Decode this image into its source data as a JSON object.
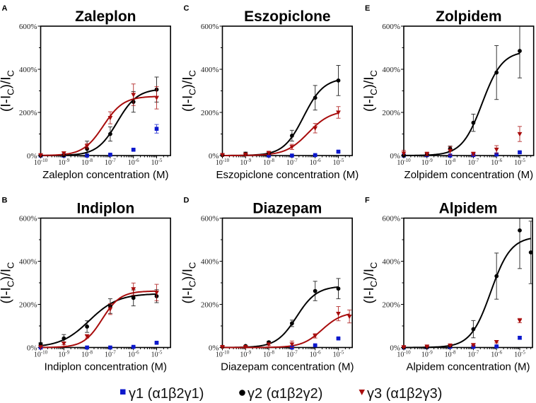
{
  "legend": [
    {
      "label": "γ1 (α1β2γ1)",
      "marker": "square",
      "color": "#0c18cc"
    },
    {
      "label": "γ2 (α1β2γ2)",
      "marker": "circle",
      "color": "#000000"
    },
    {
      "label": "γ3 (α1β2γ3)",
      "marker": "triangle_down",
      "color": "#a80c0c"
    }
  ],
  "legend_position": "bottom-center",
  "chart_data": [
    {
      "panel": "A",
      "type": "scatter",
      "title": "Zaleplon",
      "xlabel": "Zaleplon concentration (M)",
      "ylabel": "(I-IC)/IC",
      "ylabel_parts": [
        {
          "text": "(I-I"
        },
        {
          "text": "C",
          "sub": true
        },
        {
          "text": ")/I"
        },
        {
          "text": "C",
          "sub": true
        }
      ],
      "x_scale": "log10",
      "xlim_log10": [
        -10,
        -4.4
      ],
      "xticks_log10": [
        -10,
        -9,
        -8,
        -7,
        -6,
        -5
      ],
      "xtick_labels": [
        {
          "base": "10",
          "exp": "-10"
        },
        {
          "base": "10",
          "exp": "-9"
        },
        {
          "base": "10",
          "exp": "-8"
        },
        {
          "base": "10",
          "exp": "-7"
        },
        {
          "base": "10",
          "exp": "-6"
        },
        {
          "base": "10",
          "exp": "-5"
        }
      ],
      "ylim": [
        0,
        600
      ],
      "yticks": [
        0,
        200,
        400,
        600
      ],
      "yticks_minor": [
        100,
        300,
        500
      ],
      "ytick_labels": [
        "0%",
        "200%",
        "400%",
        "600%"
      ],
      "grid": false,
      "series": [
        {
          "name": "γ1 (α1β2γ1)",
          "marker": "square",
          "color": "#0c18cc",
          "x": [
            1e-10,
            1e-09,
            1e-08,
            1e-07,
            1e-06,
            1e-05
          ],
          "y": [
            0,
            0,
            0,
            4,
            27,
            124
          ],
          "err": [
            1,
            1,
            1,
            2,
            3,
            20
          ],
          "fit": null
        },
        {
          "name": "γ2 (α1β2γ2)",
          "marker": "circle",
          "color": "#000000",
          "x": [
            1e-10,
            1e-09,
            1e-08,
            1e-07,
            1e-06,
            1e-05
          ],
          "y": [
            0,
            2,
            31,
            100,
            249,
            306
          ],
          "err": [
            1,
            3,
            36,
            33,
            48,
            58
          ],
          "fit": {
            "bottom": 0,
            "top": 310,
            "log_ec50": -6.7,
            "hill": 1.0,
            "x_range_log10": [
              -10,
              -5
            ]
          }
        },
        {
          "name": "γ3 (α1β2γ3)",
          "marker": "triangle_down",
          "color": "#a80c0c",
          "x": [
            1e-10,
            1e-09,
            1e-08,
            1e-07,
            1e-06,
            1e-05
          ],
          "y": [
            2,
            10,
            44,
            175,
            282,
            268
          ],
          "err": [
            3,
            8,
            12,
            28,
            50,
            52
          ],
          "fit": {
            "bottom": 0,
            "top": 275,
            "log_ec50": -7.3,
            "hill": 1.0,
            "x_range_log10": [
              -10,
              -5
            ]
          }
        }
      ]
    },
    {
      "panel": "C",
      "type": "scatter",
      "title": "Eszopiclone",
      "xlabel": "Eszopiclone concentration (M)",
      "ylabel": "(I-IC)/IC",
      "ylabel_parts": [
        {
          "text": "(I-I"
        },
        {
          "text": "C",
          "sub": true
        },
        {
          "text": ")/I"
        },
        {
          "text": "C",
          "sub": true
        }
      ],
      "x_scale": "log10",
      "xlim_log10": [
        -10,
        -4.4
      ],
      "xticks_log10": [
        -10,
        -9,
        -8,
        -7,
        -6,
        -5
      ],
      "xtick_labels": [
        {
          "base": "10",
          "exp": "-10"
        },
        {
          "base": "10",
          "exp": "-9"
        },
        {
          "base": "10",
          "exp": "-8"
        },
        {
          "base": "10",
          "exp": "-7"
        },
        {
          "base": "10",
          "exp": "-6"
        },
        {
          "base": "10",
          "exp": "-5"
        }
      ],
      "ylim": [
        0,
        600
      ],
      "yticks": [
        0,
        200,
        400,
        600
      ],
      "yticks_minor": [
        100,
        300,
        500
      ],
      "ytick_labels": [
        "0%",
        "200%",
        "400%",
        "600%"
      ],
      "grid": false,
      "series": [
        {
          "name": "γ1 (α1β2γ1)",
          "marker": "square",
          "color": "#0c18cc",
          "x": [
            1e-08,
            1e-07,
            1e-06,
            1e-05
          ],
          "y": [
            0,
            0,
            2,
            18
          ],
          "err": [
            1,
            1,
            2,
            3
          ],
          "fit": null
        },
        {
          "name": "γ2 (α1β2γ2)",
          "marker": "circle",
          "color": "#000000",
          "x": [
            1e-10,
            1e-09,
            1e-08,
            1e-07,
            1e-06,
            1e-05
          ],
          "y": [
            2,
            8,
            12,
            92,
            268,
            348
          ],
          "err": [
            2,
            8,
            6,
            25,
            57,
            70
          ],
          "fit": {
            "bottom": 0,
            "top": 360,
            "log_ec50": -6.5,
            "hill": 1.0,
            "x_range_log10": [
              -10,
              -5
            ]
          }
        },
        {
          "name": "γ3 (α1β2γ3)",
          "marker": "triangle_down",
          "color": "#a80c0c",
          "x": [
            1e-10,
            1e-09,
            1e-08,
            1e-07,
            1e-06,
            1e-05
          ],
          "y": [
            3,
            5,
            12,
            40,
            127,
            200
          ],
          "err": [
            5,
            4,
            8,
            12,
            22,
            27
          ],
          "fit": {
            "bottom": 0,
            "top": 210,
            "log_ec50": -6.3,
            "hill": 0.9,
            "x_range_log10": [
              -10,
              -5
            ]
          }
        }
      ]
    },
    {
      "panel": "E",
      "type": "scatter",
      "title": "Zolpidem",
      "xlabel": "Zolpidem concentration (M)",
      "ylabel": "(I-IC)/IC",
      "ylabel_parts": [
        {
          "text": "(I-I"
        },
        {
          "text": "C",
          "sub": true
        },
        {
          "text": ")/I"
        },
        {
          "text": "C",
          "sub": true
        }
      ],
      "x_scale": "log10",
      "xlim_log10": [
        -10,
        -4.4
      ],
      "xticks_log10": [
        -10,
        -9,
        -8,
        -7,
        -6,
        -5
      ],
      "xtick_labels": [
        {
          "base": "10",
          "exp": "-10"
        },
        {
          "base": "10",
          "exp": "-9"
        },
        {
          "base": "10",
          "exp": "-8"
        },
        {
          "base": "10",
          "exp": "-7"
        },
        {
          "base": "10",
          "exp": "-6"
        },
        {
          "base": "10",
          "exp": "-5"
        }
      ],
      "ylim": [
        0,
        600
      ],
      "yticks": [
        0,
        200,
        400,
        600
      ],
      "yticks_minor": [
        100,
        300,
        500
      ],
      "ytick_labels": [
        "0%",
        "200%",
        "400%",
        "600%"
      ],
      "grid": false,
      "series": [
        {
          "name": "γ1 (α1β2γ1)",
          "marker": "square",
          "color": "#0c18cc",
          "x": [
            1e-10,
            1e-09,
            1e-08,
            1e-07,
            1e-06,
            1e-05
          ],
          "y": [
            0,
            2,
            0,
            2,
            5,
            15
          ],
          "err": [
            1,
            1,
            1,
            1,
            2,
            3
          ],
          "fit": null
        },
        {
          "name": "γ2 (α1β2γ2)",
          "marker": "circle",
          "color": "#000000",
          "x": [
            1e-10,
            1e-09,
            1e-08,
            1e-07,
            1e-06,
            1e-05
          ],
          "y": [
            0,
            5,
            32,
            152,
            385,
            485
          ],
          "err": [
            2,
            5,
            12,
            40,
            125,
            125
          ],
          "fit": {
            "bottom": 0,
            "top": 485,
            "log_ec50": -6.62,
            "hill": 1.0,
            "x_range_log10": [
              -10,
              -5
            ]
          }
        },
        {
          "name": "γ3 (α1β2γ3)",
          "marker": "triangle_down",
          "color": "#a80c0c",
          "x": [
            1e-10,
            1e-09,
            1e-08,
            1e-07,
            1e-06,
            1e-05
          ],
          "y": [
            10,
            8,
            22,
            8,
            28,
            100
          ],
          "err": [
            14,
            8,
            20,
            8,
            18,
            35
          ],
          "fit": null
        }
      ]
    },
    {
      "panel": "B",
      "type": "scatter",
      "title": "Indiplon",
      "xlabel": "Indiplon concentration (M)",
      "ylabel": "(I-IC)/IC",
      "ylabel_parts": [
        {
          "text": "(I-I"
        },
        {
          "text": "C",
          "sub": true
        },
        {
          "text": ")/I"
        },
        {
          "text": "C",
          "sub": true
        }
      ],
      "x_scale": "log10",
      "xlim_log10": [
        -10,
        -4.4
      ],
      "xticks_log10": [
        -10,
        -9,
        -8,
        -7,
        -6,
        -5
      ],
      "xtick_labels": [
        {
          "base": "10",
          "exp": "-10"
        },
        {
          "base": "10",
          "exp": "-9"
        },
        {
          "base": "10",
          "exp": "-8"
        },
        {
          "base": "10",
          "exp": "-7"
        },
        {
          "base": "10",
          "exp": "-6"
        },
        {
          "base": "10",
          "exp": "-5"
        }
      ],
      "ylim": [
        0,
        600
      ],
      "yticks": [
        0,
        200,
        400,
        600
      ],
      "yticks_minor": [
        100,
        300,
        500
      ],
      "ytick_labels": [
        "0%",
        "200%",
        "400%",
        "600%"
      ],
      "grid": false,
      "series": [
        {
          "name": "γ1 (α1β2γ1)",
          "marker": "square",
          "color": "#0c18cc",
          "x": [
            1e-10,
            1e-08,
            1e-07,
            1e-06,
            1e-05
          ],
          "y": [
            0,
            0,
            0,
            3,
            22
          ],
          "err": [
            1,
            1,
            1,
            2,
            3
          ],
          "fit": null
        },
        {
          "name": "γ2 (α1β2γ2)",
          "marker": "circle",
          "color": "#000000",
          "x": [
            1e-10,
            1e-09,
            1e-08,
            1e-07,
            1e-06,
            1e-05
          ],
          "y": [
            16,
            42,
            97,
            192,
            230,
            238
          ],
          "err": [
            6,
            18,
            27,
            34,
            37,
            30
          ],
          "fit": {
            "bottom": 0,
            "top": 250,
            "log_ec50": -7.9,
            "hill": 0.7,
            "x_range_log10": [
              -10,
              -5
            ]
          }
        },
        {
          "name": "γ3 (α1β2γ3)",
          "marker": "triangle_down",
          "color": "#a80c0c",
          "x": [
            1e-10,
            1e-09,
            1e-08,
            1e-07,
            1e-06,
            1e-05
          ],
          "y": [
            2,
            19,
            52,
            178,
            271,
            255
          ],
          "err": [
            3,
            6,
            8,
            25,
            28,
            38
          ],
          "fit": {
            "bottom": 0,
            "top": 262,
            "log_ec50": -7.35,
            "hill": 1.1,
            "x_range_log10": [
              -10,
              -5
            ]
          }
        }
      ]
    },
    {
      "panel": "D",
      "type": "scatter",
      "title": "Diazepam",
      "xlabel": "Diazepam concentration (M)",
      "ylabel": "(I-IC)/IC",
      "ylabel_parts": [
        {
          "text": "(I-I"
        },
        {
          "text": "C",
          "sub": true
        },
        {
          "text": ")/I"
        },
        {
          "text": "C",
          "sub": true
        }
      ],
      "x_scale": "log10",
      "xlim_log10": [
        -10,
        -4.4
      ],
      "xticks_log10": [
        -10,
        -9,
        -8,
        -7,
        -6,
        -5
      ],
      "xtick_labels": [
        {
          "base": "10",
          "exp": "-10"
        },
        {
          "base": "10",
          "exp": "-9"
        },
        {
          "base": "10",
          "exp": "-8"
        },
        {
          "base": "10",
          "exp": "-7"
        },
        {
          "base": "10",
          "exp": "-6"
        },
        {
          "base": "10",
          "exp": "-5"
        }
      ],
      "ylim": [
        0,
        600
      ],
      "yticks": [
        0,
        200,
        400,
        600
      ],
      "yticks_minor": [
        100,
        300,
        500
      ],
      "ytick_labels": [
        "0%",
        "200%",
        "400%",
        "600%"
      ],
      "grid": false,
      "series": [
        {
          "name": "γ1 (α1β2γ1)",
          "marker": "square",
          "color": "#0c18cc",
          "x": [
            1e-07,
            1e-06,
            1e-05
          ],
          "y": [
            0,
            10,
            42
          ],
          "err": [
            1,
            2,
            3
          ],
          "fit": null
        },
        {
          "name": "γ2 (α1β2γ2)",
          "marker": "circle",
          "color": "#000000",
          "x": [
            1e-10,
            1e-09,
            1e-08,
            1e-07,
            1e-06,
            1e-05
          ],
          "y": [
            3,
            7,
            24,
            112,
            262,
            273
          ],
          "err": [
            2,
            3,
            5,
            15,
            45,
            47
          ],
          "fit": {
            "bottom": 0,
            "top": 285,
            "log_ec50": -6.8,
            "hill": 1.0,
            "x_range_log10": [
              -10,
              -5
            ]
          }
        },
        {
          "name": "γ3 (α1β2γ3)",
          "marker": "triangle_down",
          "color": "#a80c0c",
          "x": [
            1e-10,
            1e-09,
            1e-08,
            1e-07,
            1e-06,
            1e-05,
            3e-05
          ],
          "y": [
            3,
            3,
            15,
            15,
            54,
            157,
            144
          ],
          "err": [
            2,
            2,
            6,
            15,
            10,
            33,
            30
          ],
          "fit": {
            "bottom": 0,
            "top": 165,
            "log_ec50": -5.7,
            "hill": 1.0,
            "x_range_log10": [
              -10,
              -4.52
            ]
          }
        }
      ]
    },
    {
      "panel": "F",
      "type": "scatter",
      "title": "Alpidem",
      "xlabel": "Alpidem concentration (M)",
      "ylabel": "(I-IC)/IC",
      "ylabel_parts": [
        {
          "text": "(I-I"
        },
        {
          "text": "C",
          "sub": true
        },
        {
          "text": ")/I"
        },
        {
          "text": "C",
          "sub": true
        }
      ],
      "x_scale": "log10",
      "xlim_log10": [
        -10,
        -4.45
      ],
      "xticks_log10": [
        -10,
        -9,
        -8,
        -7,
        -6,
        -5
      ],
      "xtick_labels": [
        {
          "base": "10",
          "exp": "-10"
        },
        {
          "base": "10",
          "exp": "-9"
        },
        {
          "base": "10",
          "exp": "-8"
        },
        {
          "base": "10",
          "exp": "-7"
        },
        {
          "base": "10",
          "exp": "-6"
        },
        {
          "base": "10",
          "exp": "-5"
        }
      ],
      "ylim": [
        0,
        600
      ],
      "yticks": [
        0,
        200,
        400,
        600
      ],
      "yticks_minor": [
        100,
        300,
        500
      ],
      "ytick_labels": [
        "0%",
        "200%",
        "400%",
        "600%"
      ],
      "grid": false,
      "series": [
        {
          "name": "γ1 (α1β2γ1)",
          "marker": "square",
          "color": "#0c18cc",
          "x": [
            1e-10,
            1e-09,
            1e-08,
            1e-07,
            1e-06,
            1e-05
          ],
          "y": [
            0,
            2,
            3,
            3,
            5,
            45
          ],
          "err": [
            1,
            1,
            1,
            1,
            2,
            6
          ],
          "fit": null
        },
        {
          "name": "γ2 (α1β2γ2)",
          "marker": "circle",
          "color": "#000000",
          "x": [
            1e-10,
            1e-09,
            1e-08,
            1e-07,
            1e-06,
            1e-05,
            3e-05
          ],
          "y": [
            0,
            2,
            8,
            85,
            331,
            543,
            441
          ],
          "err": [
            1,
            1,
            3,
            40,
            107,
            177,
            145
          ],
          "fit": {
            "bottom": 0,
            "top": 515,
            "log_ec50": -6.25,
            "hill": 1.0,
            "x_range_log10": [
              -10,
              -4.52
            ]
          }
        },
        {
          "name": "γ3 (α1β2γ3)",
          "marker": "triangle_down",
          "color": "#a80c0c",
          "x": [
            1e-10,
            1e-09,
            1e-08,
            1e-07,
            1e-06,
            1e-05
          ],
          "y": [
            2,
            5,
            10,
            12,
            26,
            125
          ],
          "err": [
            2,
            2,
            3,
            4,
            5,
            10
          ],
          "fit": null
        }
      ]
    }
  ]
}
